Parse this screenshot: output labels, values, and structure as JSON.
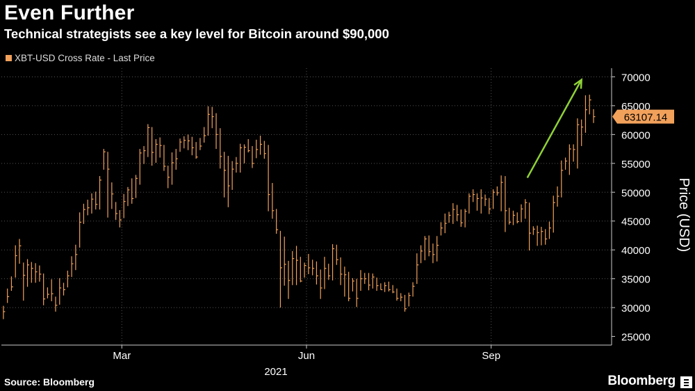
{
  "title": "Even Further",
  "subtitle": "Technical strategists see a key level for Bitcoin around $90,000",
  "source": "Source: Bloomberg",
  "brand": "Bloomberg",
  "colors": {
    "background": "#000000",
    "series": "#f2a15b",
    "arrow": "#8fd137",
    "grid": "#555555"
  },
  "chart_data": {
    "type": "bar",
    "style": "high-low-close price bars",
    "series": [
      {
        "name": "XBT-USD Cross Rate - Last Price",
        "x": [
          "2021-01-01",
          "2021-01-03",
          "2021-01-05",
          "2021-01-07",
          "2021-01-09",
          "2021-01-11",
          "2021-01-13",
          "2021-01-15",
          "2021-01-17",
          "2021-01-19",
          "2021-01-21",
          "2021-01-23",
          "2021-01-25",
          "2021-01-27",
          "2021-01-29",
          "2021-01-31",
          "2021-02-02",
          "2021-02-04",
          "2021-02-06",
          "2021-02-08",
          "2021-02-10",
          "2021-02-12",
          "2021-02-14",
          "2021-02-16",
          "2021-02-18",
          "2021-02-20",
          "2021-02-22",
          "2021-02-24",
          "2021-02-26",
          "2021-02-28",
          "2021-03-02",
          "2021-03-04",
          "2021-03-06",
          "2021-03-08",
          "2021-03-10",
          "2021-03-12",
          "2021-03-14",
          "2021-03-16",
          "2021-03-18",
          "2021-03-20",
          "2021-03-22",
          "2021-03-24",
          "2021-03-26",
          "2021-03-28",
          "2021-03-30",
          "2021-04-01",
          "2021-04-03",
          "2021-04-05",
          "2021-04-07",
          "2021-04-09",
          "2021-04-11",
          "2021-04-13",
          "2021-04-15",
          "2021-04-17",
          "2021-04-19",
          "2021-04-21",
          "2021-04-23",
          "2021-04-25",
          "2021-04-27",
          "2021-04-29",
          "2021-05-01",
          "2021-05-03",
          "2021-05-05",
          "2021-05-07",
          "2021-05-09",
          "2021-05-11",
          "2021-05-13",
          "2021-05-15",
          "2021-05-17",
          "2021-05-19",
          "2021-05-21",
          "2021-05-23",
          "2021-05-25",
          "2021-05-27",
          "2021-05-29",
          "2021-05-31",
          "2021-06-02",
          "2021-06-04",
          "2021-06-06",
          "2021-06-08",
          "2021-06-10",
          "2021-06-12",
          "2021-06-14",
          "2021-06-16",
          "2021-06-18",
          "2021-06-20",
          "2021-06-22",
          "2021-06-24",
          "2021-06-26",
          "2021-06-28",
          "2021-06-30",
          "2021-07-02",
          "2021-07-04",
          "2021-07-06",
          "2021-07-08",
          "2021-07-10",
          "2021-07-12",
          "2021-07-14",
          "2021-07-16",
          "2021-07-18",
          "2021-07-20",
          "2021-07-22",
          "2021-07-24",
          "2021-07-26",
          "2021-07-28",
          "2021-07-30",
          "2021-08-01",
          "2021-08-03",
          "2021-08-05",
          "2021-08-07",
          "2021-08-09",
          "2021-08-11",
          "2021-08-13",
          "2021-08-15",
          "2021-08-17",
          "2021-08-19",
          "2021-08-21",
          "2021-08-23",
          "2021-08-25",
          "2021-08-27",
          "2021-08-29",
          "2021-08-31",
          "2021-09-02",
          "2021-09-04",
          "2021-09-06",
          "2021-09-08",
          "2021-09-10",
          "2021-09-12",
          "2021-09-14",
          "2021-09-16",
          "2021-09-18",
          "2021-09-20",
          "2021-09-22",
          "2021-09-24",
          "2021-09-26",
          "2021-09-28",
          "2021-09-30",
          "2021-10-02",
          "2021-10-04",
          "2021-10-06",
          "2021-10-08",
          "2021-10-10",
          "2021-10-12",
          "2021-10-14",
          "2021-10-16",
          "2021-10-18",
          "2021-10-20",
          "2021-10-22"
        ],
        "close": [
          29300,
          31900,
          33600,
          39000,
          40700,
          35600,
          37400,
          36800,
          36200,
          35800,
          31500,
          32300,
          32400,
          30400,
          33400,
          33100,
          35500,
          37600,
          39200,
          44800,
          47000,
          47300,
          48800,
          47900,
          52100,
          57000,
          54000,
          49700,
          46300,
          45200,
          48400,
          50400,
          48900,
          52400,
          56800,
          57200,
          61200,
          56900,
          58300,
          58100,
          54500,
          52600,
          55100,
          55800,
          58700,
          59000,
          58900,
          57700,
          56100,
          58000,
          59800,
          63500,
          63100,
          60000,
          56200,
          53800,
          51100,
          54000,
          55000,
          57700,
          57800,
          57200,
          55000,
          57400,
          58300,
          56700,
          49600,
          46800,
          43500,
          36900,
          37500,
          34700,
          38500,
          38200,
          34600,
          37300,
          36900,
          36800,
          35500,
          33400,
          36800,
          35500,
          40200,
          38300,
          35800,
          35700,
          31600,
          34600,
          31600,
          35000,
          35000,
          33900,
          35300,
          33800,
          33100,
          33800,
          33100,
          32700,
          31600,
          31800,
          29800,
          32100,
          33700,
          37400,
          39800,
          41900,
          39700,
          39200,
          40800,
          43800,
          44600,
          46000,
          47000,
          46100,
          44700,
          46700,
          49300,
          49600,
          48900,
          49000,
          48800,
          47100,
          50000,
          49900,
          51700,
          46800,
          44800,
          46000,
          44900,
          47100,
          48200,
          42900,
          43600,
          43000,
          43200,
          41900,
          43800,
          48200,
          49300,
          53800,
          55400,
          57500,
          57400,
          61700,
          61300,
          64300,
          66000,
          63100
        ],
        "high": [
          30300,
          33300,
          35400,
          40800,
          41900,
          37800,
          38400,
          37900,
          37700,
          37300,
          35900,
          33500,
          34900,
          31900,
          35100,
          34300,
          36400,
          38900,
          40900,
          46500,
          48000,
          48700,
          49800,
          50100,
          52800,
          57500,
          57000,
          51700,
          48300,
          46900,
          49700,
          50900,
          52400,
          53000,
          57500,
          58000,
          61800,
          61300,
          59200,
          59500,
          58200,
          54600,
          56900,
          57500,
          59300,
          59700,
          60000,
          59600,
          58700,
          59400,
          61300,
          64900,
          64800,
          63700,
          61100,
          57000,
          56300,
          55400,
          56100,
          58400,
          58300,
          59200,
          58000,
          59100,
          59800,
          58900,
          58200,
          51600,
          47100,
          43300,
          42300,
          38100,
          39800,
          40700,
          38800,
          37800,
          39300,
          38300,
          38000,
          36600,
          38800,
          37600,
          41000,
          40900,
          38700,
          37100,
          36200,
          35100,
          35000,
          36500,
          36000,
          36000,
          35900,
          35200,
          34200,
          34400,
          34500,
          33900,
          33300,
          32500,
          32200,
          32600,
          34400,
          39400,
          40800,
          42400,
          42500,
          41100,
          42400,
          44800,
          46300,
          46600,
          48100,
          47800,
          47000,
          47100,
          49800,
          50500,
          49800,
          50500,
          49600,
          49000,
          50500,
          51000,
          52900,
          52800,
          47300,
          46800,
          46500,
          47900,
          48800,
          48200,
          44100,
          44200,
          44000,
          43600,
          44900,
          49400,
          51000,
          55500,
          56000,
          58300,
          58300,
          62800,
          62600,
          66800,
          66900,
          64400
        ],
        "low": [
          28000,
          30800,
          32900,
          35200,
          37600,
          31200,
          33600,
          34300,
          34300,
          34500,
          30400,
          31600,
          31100,
          29300,
          30500,
          32100,
          33500,
          35300,
          36500,
          40400,
          44500,
          46000,
          46300,
          47000,
          47000,
          53900,
          45600,
          47100,
          45200,
          43900,
          45500,
          47600,
          48000,
          49000,
          51300,
          54900,
          56100,
          54600,
          55100,
          56000,
          53700,
          50700,
          51300,
          53900,
          57000,
          57600,
          57300,
          56400,
          55800,
          57300,
          58600,
          59800,
          61100,
          57500,
          54100,
          49100,
          47400,
          50400,
          53400,
          53400,
          55000,
          56900,
          54200,
          55900,
          56500,
          55800,
          46700,
          45400,
          42800,
          30000,
          33800,
          31500,
          33900,
          33900,
          34400,
          35200,
          35800,
          35600,
          34000,
          31500,
          33200,
          34800,
          34700,
          37400,
          33900,
          31900,
          31100,
          32800,
          30100,
          32900,
          34100,
          33000,
          33300,
          32900,
          33100,
          32700,
          32800,
          32500,
          31200,
          31100,
          29300,
          30200,
          31900,
          34100,
          37700,
          38200,
          38900,
          37700,
          38000,
          42500,
          42900,
          44700,
          44500,
          45000,
          44000,
          43900,
          46300,
          48300,
          46800,
          46300,
          47600,
          46200,
          47100,
          49400,
          46700,
          43100,
          44400,
          44300,
          44600,
          44800,
          45400,
          39900,
          42600,
          40700,
          40800,
          40900,
          41900,
          43000,
          47500,
          49100,
          53900,
          53000,
          55300,
          54100,
          58000,
          60300,
          63500,
          62000
        ]
      }
    ],
    "xlabel": "",
    "x_tick_labels": [
      "Mar",
      "Jun",
      "Sep"
    ],
    "x_tick_dates": [
      "2021-03-01",
      "2021-06-01",
      "2021-09-01"
    ],
    "x_year_label": "2021",
    "ylabel": "Price (USD)",
    "y_ticks": [
      25000,
      30000,
      35000,
      40000,
      45000,
      50000,
      55000,
      60000,
      65000,
      70000
    ],
    "y_tick_labels": [
      "25000",
      "30000",
      "35000",
      "40000",
      "45000",
      "50000",
      "55000",
      "60000",
      "65000",
      "70000"
    ],
    "ylim": [
      23500,
      71500
    ],
    "xlim": [
      "2020-12-31",
      "2021-10-31"
    ],
    "y_axis_side": "right",
    "grid": "dotted",
    "last_price_label": "63107.14",
    "legend": [
      "XBT-USD Cross Rate - Last Price"
    ],
    "legend_position": "top-left",
    "annotations": [
      {
        "type": "arrow",
        "color": "#8fd137",
        "from": [
          "2021-09-19",
          52500
        ],
        "to": [
          "2021-10-16",
          69500
        ]
      }
    ]
  }
}
